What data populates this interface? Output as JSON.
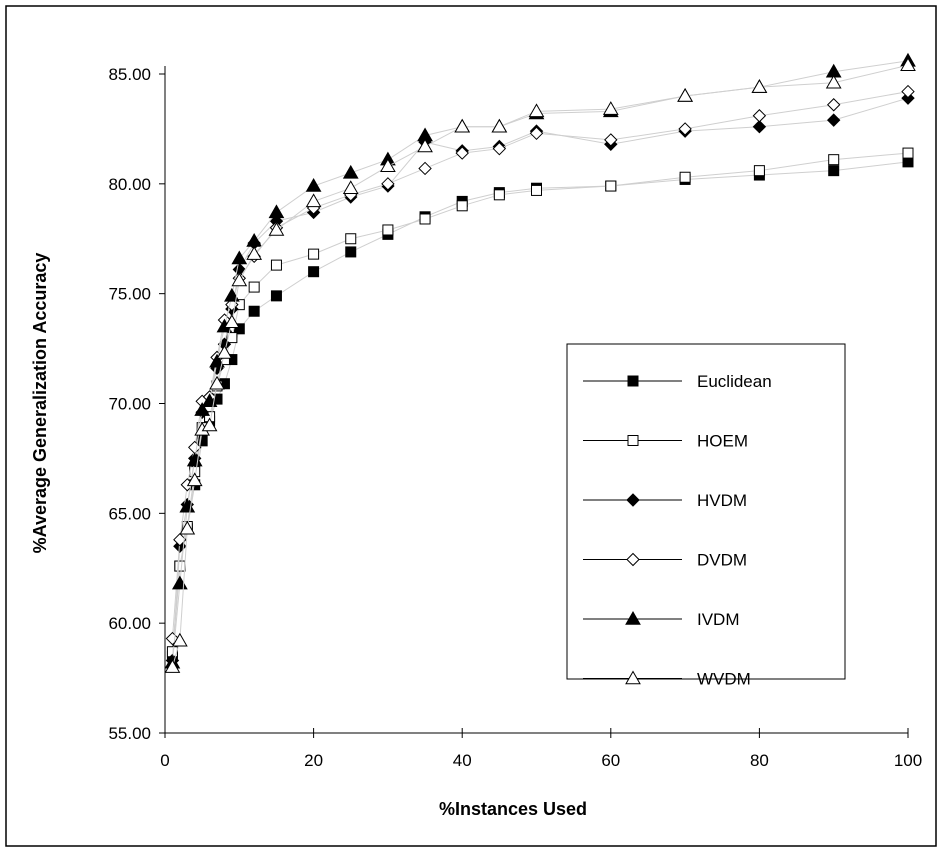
{
  "chart_data": {
    "type": "scatter",
    "title": "",
    "xlabel": "%Instances Used",
    "ylabel": "%Average Generalization Accuracy",
    "xlim": [
      0,
      100
    ],
    "ylim": [
      55,
      85
    ],
    "x_ticks": [
      "0",
      "20",
      "40",
      "60",
      "80",
      "100"
    ],
    "y_ticks": [
      "55.00",
      "60.00",
      "65.00",
      "70.00",
      "75.00",
      "80.00",
      "85.00"
    ],
    "grid": false,
    "legend_position": "bottom-right",
    "series": [
      {
        "name": "Euclidean",
        "marker": "square-filled",
        "x": [
          1,
          2,
          3,
          4,
          5,
          6,
          7,
          8,
          9,
          10,
          12,
          15,
          20,
          25,
          30,
          35,
          40,
          45,
          50,
          60,
          70,
          80,
          90,
          100
        ],
        "y": [
          58.5,
          62.6,
          64.3,
          66.3,
          68.3,
          69.2,
          70.2,
          70.9,
          72.0,
          73.4,
          74.2,
          74.9,
          76.0,
          76.9,
          77.7,
          78.5,
          79.2,
          79.6,
          79.8,
          79.9,
          80.2,
          80.4,
          80.6,
          81.0
        ]
      },
      {
        "name": "HOEM",
        "marker": "square-open",
        "x": [
          1,
          2,
          3,
          4,
          5,
          6,
          7,
          8,
          9,
          10,
          12,
          15,
          20,
          25,
          30,
          35,
          40,
          45,
          50,
          60,
          70,
          80,
          90,
          100
        ],
        "y": [
          58.7,
          62.6,
          64.4,
          66.9,
          68.9,
          69.4,
          70.8,
          72.0,
          73.0,
          74.5,
          75.3,
          76.3,
          76.8,
          77.5,
          77.9,
          78.4,
          79.0,
          79.5,
          79.7,
          79.9,
          80.3,
          80.6,
          81.1,
          81.4
        ]
      },
      {
        "name": "HVDM",
        "marker": "diamond-filled",
        "x": [
          1,
          2,
          3,
          4,
          5,
          6,
          7,
          8,
          9,
          10,
          12,
          15,
          20,
          25,
          30,
          35,
          40,
          45,
          50,
          60,
          70,
          80,
          90,
          100
        ],
        "y": [
          58.3,
          63.5,
          65.4,
          67.5,
          69.6,
          70.3,
          71.6,
          72.7,
          74.3,
          76.1,
          77.3,
          78.3,
          78.7,
          79.4,
          79.9,
          81.9,
          81.5,
          81.7,
          82.4,
          81.8,
          82.4,
          82.6,
          82.9,
          83.9
        ]
      },
      {
        "name": "DVDM",
        "marker": "diamond-open",
        "x": [
          1,
          2,
          3,
          4,
          5,
          6,
          7,
          8,
          9,
          10,
          12,
          15,
          20,
          25,
          30,
          35,
          40,
          45,
          50,
          60,
          70,
          80,
          90,
          100
        ],
        "y": [
          59.3,
          63.8,
          66.3,
          68.0,
          70.1,
          70.3,
          72.1,
          73.8,
          74.5,
          75.7,
          76.7,
          78.0,
          78.9,
          79.5,
          80.0,
          80.7,
          81.4,
          81.6,
          82.3,
          82.0,
          82.5,
          83.1,
          83.6,
          84.2
        ]
      },
      {
        "name": "IVDM",
        "marker": "triangle-filled",
        "x": [
          1,
          2,
          3,
          4,
          5,
          6,
          7,
          8,
          9,
          10,
          12,
          15,
          20,
          25,
          30,
          35,
          40,
          45,
          50,
          60,
          70,
          80,
          90,
          100
        ],
        "y": [
          58.2,
          61.8,
          65.3,
          67.4,
          69.7,
          70.1,
          71.9,
          73.5,
          74.9,
          76.6,
          77.4,
          78.7,
          79.9,
          80.5,
          81.1,
          82.2,
          82.6,
          82.6,
          83.2,
          83.3,
          84.0,
          84.4,
          85.1,
          85.6
        ]
      },
      {
        "name": "WVDM",
        "marker": "triangle-open",
        "x": [
          1,
          2,
          3,
          4,
          5,
          6,
          7,
          8,
          9,
          10,
          12,
          15,
          20,
          25,
          30,
          35,
          40,
          45,
          50,
          60,
          70,
          80,
          90,
          100
        ],
        "y": [
          58.0,
          59.2,
          64.3,
          66.5,
          68.8,
          69.0,
          70.9,
          72.3,
          73.7,
          75.6,
          76.8,
          77.9,
          79.2,
          79.8,
          80.8,
          81.7,
          82.6,
          82.6,
          83.3,
          83.4,
          84.0,
          84.4,
          84.6,
          85.4
        ]
      }
    ]
  }
}
